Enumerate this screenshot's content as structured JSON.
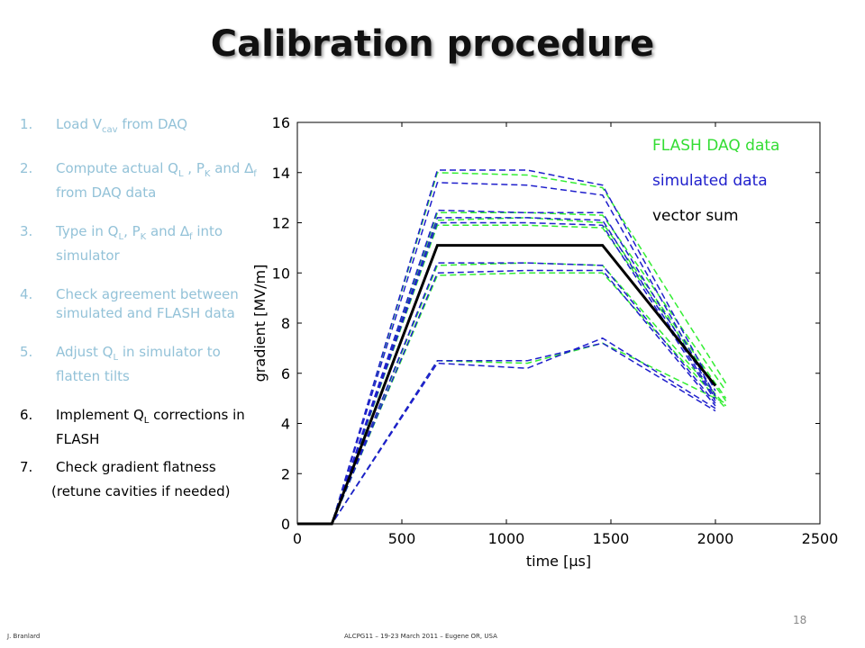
{
  "slide": {
    "title": "Calibration procedure",
    "page_number": "18",
    "footer_left": "J. Branlard",
    "footer_center": "ALCPG11 – 19-23 March 2011 – Eugene OR, USA"
  },
  "steps": [
    {
      "num": "1.",
      "pre": "Load V",
      "sub": "cav",
      "post": " from DAQ"
    },
    {
      "num": "2.",
      "pre": "Compute actual Q",
      "sub": "L",
      "post": " , P",
      "sub2": "K",
      "post2": " and ∆",
      "sub3": "f",
      "post3": " from DAQ data"
    },
    {
      "num": "3.",
      "pre": "Type in Q",
      "sub": "L",
      "post": ", P",
      "sub2": "K",
      "post2": " and ∆",
      "sub3": "f",
      "post3": " into simulator"
    },
    {
      "num": "4.",
      "text": "Check agreement between simulated and FLASH data"
    },
    {
      "num": "5.",
      "pre": "Adjust Q",
      "sub": "L",
      "post": " in simulator to flatten tilts"
    },
    {
      "num": "6.",
      "pre": "Implement Q",
      "sub": "L",
      "post": " corrections in FLASH"
    },
    {
      "num": "7.",
      "text": "Check gradient flatness",
      "note": "(retune cavities if needed)"
    }
  ],
  "colors": {
    "faded_text": "#93c2d8",
    "flash": "#33ee33",
    "simulated": "#1f1fcc",
    "vector_sum": "#000000"
  },
  "chart_data": {
    "type": "line",
    "xlabel": "time [µs]",
    "ylabel": "gradient [MV/m]",
    "xlim": [
      0,
      2500
    ],
    "ylim": [
      0,
      16
    ],
    "xticks": [
      0,
      500,
      1000,
      1500,
      2000,
      2500
    ],
    "yticks": [
      0,
      2,
      4,
      6,
      8,
      10,
      12,
      14,
      16
    ],
    "legend": [
      "FLASH DAQ data",
      "simulated data",
      "vector sum"
    ],
    "legend_placement": "top-right",
    "series": [
      {
        "name": "FLASH DAQ data",
        "style": "dashed",
        "traces": [
          {
            "x": [
              0,
              165,
              670,
              1100,
              1460,
              2050
            ],
            "y": [
              0,
              0,
              14.0,
              13.9,
              13.4,
              5.6
            ]
          },
          {
            "x": [
              0,
              165,
              670,
              1100,
              1460,
              2050
            ],
            "y": [
              0,
              0,
              12.4,
              12.4,
              12.3,
              5.3
            ]
          },
          {
            "x": [
              0,
              165,
              670,
              1100,
              1460,
              2050
            ],
            "y": [
              0,
              0,
              12.1,
              12.2,
              12.0,
              5.0
            ]
          },
          {
            "x": [
              0,
              165,
              670,
              1100,
              1460,
              2050
            ],
            "y": [
              0,
              0,
              11.9,
              11.9,
              11.8,
              4.9
            ]
          },
          {
            "x": [
              0,
              165,
              670,
              1100,
              1460,
              2050
            ],
            "y": [
              0,
              0,
              10.3,
              10.4,
              10.3,
              4.7
            ]
          },
          {
            "x": [
              0,
              165,
              670,
              1100,
              1460,
              2050
            ],
            "y": [
              0,
              0,
              9.9,
              10.0,
              10.0,
              4.6
            ]
          },
          {
            "x": [
              0,
              165,
              670,
              1100,
              1460,
              2050
            ],
            "y": [
              0,
              0,
              6.5,
              6.4,
              7.2,
              4.8
            ]
          }
        ]
      },
      {
        "name": "simulated data",
        "style": "dashed",
        "traces": [
          {
            "x": [
              0,
              165,
              670,
              1100,
              1460,
              2000
            ],
            "y": [
              0,
              0,
              14.1,
              14.1,
              13.5,
              5.3
            ]
          },
          {
            "x": [
              0,
              165,
              670,
              1100,
              1460,
              2000
            ],
            "y": [
              0,
              0,
              13.6,
              13.5,
              13.1,
              5.1
            ]
          },
          {
            "x": [
              0,
              165,
              670,
              1100,
              1460,
              2000
            ],
            "y": [
              0,
              0,
              12.5,
              12.4,
              12.4,
              5.1
            ]
          },
          {
            "x": [
              0,
              165,
              670,
              1100,
              1460,
              2000
            ],
            "y": [
              0,
              0,
              12.2,
              12.2,
              12.1,
              5.0
            ]
          },
          {
            "x": [
              0,
              165,
              670,
              1100,
              1460,
              2000
            ],
            "y": [
              0,
              0,
              12.0,
              12.0,
              11.9,
              4.9
            ]
          },
          {
            "x": [
              0,
              165,
              670,
              1100,
              1460,
              2000
            ],
            "y": [
              0,
              0,
              10.4,
              10.4,
              10.3,
              4.8
            ]
          },
          {
            "x": [
              0,
              165,
              670,
              1100,
              1460,
              2000
            ],
            "y": [
              0,
              0,
              10.0,
              10.1,
              10.1,
              4.7
            ]
          },
          {
            "x": [
              0,
              165,
              670,
              1100,
              1460,
              2000
            ],
            "y": [
              0,
              0,
              6.4,
              6.2,
              7.4,
              4.6
            ]
          },
          {
            "x": [
              0,
              165,
              670,
              1100,
              1460,
              2000
            ],
            "y": [
              0,
              0,
              6.5,
              6.5,
              7.2,
              4.5
            ]
          }
        ]
      },
      {
        "name": "vector sum",
        "style": "solid",
        "traces": [
          {
            "x": [
              0,
              165,
              670,
              1000,
              1460,
              2000
            ],
            "y": [
              0,
              0,
              11.1,
              11.1,
              11.1,
              5.5
            ]
          }
        ]
      }
    ]
  }
}
